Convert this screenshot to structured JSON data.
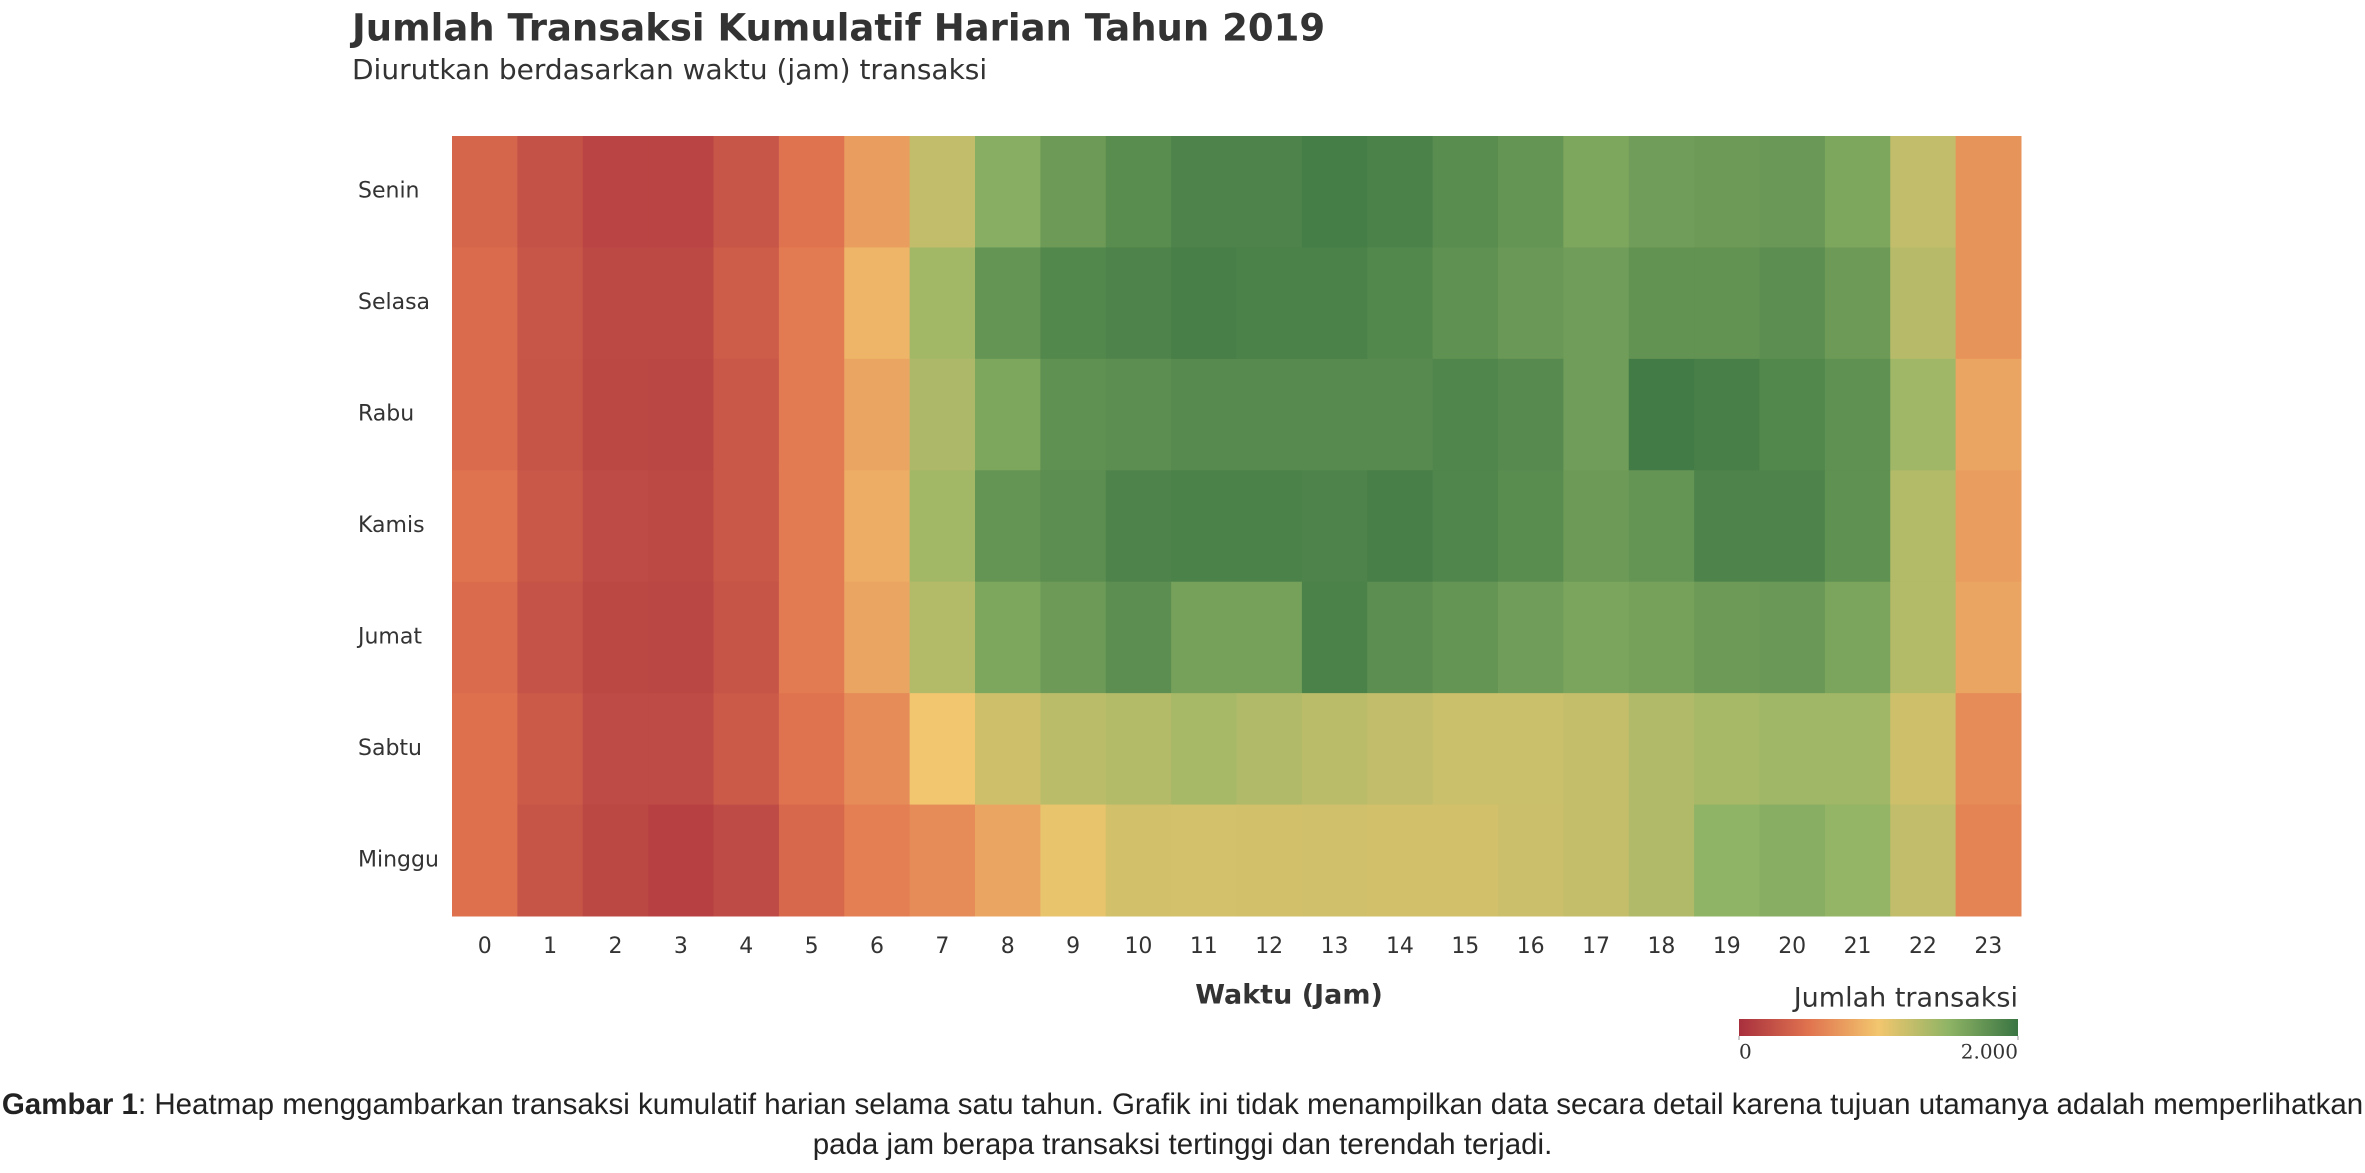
{
  "chart_data": {
    "type": "heatmap",
    "title": "Jumlah Transaksi Kumulatif Harian Tahun 2019",
    "subtitle": "Diurutkan berdasarkan waktu (jam) transaksi",
    "x_label": "Waktu (Jam)",
    "x": [
      0,
      1,
      2,
      3,
      4,
      5,
      6,
      7,
      8,
      9,
      10,
      11,
      12,
      13,
      14,
      15,
      16,
      17,
      18,
      19,
      20,
      21,
      22,
      23
    ],
    "categories": [
      "Senin",
      "Selasa",
      "Rabu",
      "Kamis",
      "Jumat",
      "Sabtu",
      "Minggu"
    ],
    "values": [
      [
        400,
        250,
        150,
        150,
        280,
        500,
        750,
        1250,
        1550,
        1700,
        1820,
        1880,
        1880,
        1930,
        1900,
        1820,
        1750,
        1600,
        1680,
        1700,
        1720,
        1600,
        1250,
        700
      ],
      [
        450,
        280,
        190,
        190,
        330,
        550,
        900,
        1400,
        1750,
        1850,
        1880,
        1920,
        1900,
        1900,
        1850,
        1780,
        1720,
        1680,
        1760,
        1760,
        1800,
        1700,
        1300,
        700
      ],
      [
        450,
        270,
        180,
        170,
        300,
        550,
        800,
        1350,
        1600,
        1780,
        1800,
        1830,
        1830,
        1830,
        1830,
        1870,
        1830,
        1680,
        1950,
        1920,
        1850,
        1780,
        1420,
        800
      ],
      [
        500,
        300,
        200,
        190,
        300,
        550,
        850,
        1400,
        1750,
        1800,
        1880,
        1900,
        1900,
        1880,
        1920,
        1870,
        1820,
        1700,
        1750,
        1880,
        1880,
        1780,
        1320,
        750
      ],
      [
        450,
        260,
        180,
        170,
        270,
        550,
        800,
        1320,
        1600,
        1700,
        1800,
        1650,
        1650,
        1900,
        1800,
        1750,
        1680,
        1620,
        1650,
        1700,
        1720,
        1620,
        1320,
        800
      ],
      [
        480,
        310,
        200,
        200,
        310,
        500,
        650,
        1000,
        1180,
        1280,
        1320,
        1380,
        1330,
        1280,
        1250,
        1200,
        1200,
        1230,
        1330,
        1380,
        1420,
        1420,
        1180,
        650
      ],
      [
        480,
        270,
        180,
        130,
        200,
        420,
        570,
        650,
        800,
        1050,
        1160,
        1150,
        1160,
        1170,
        1160,
        1160,
        1190,
        1230,
        1330,
        1500,
        1550,
        1480,
        1250,
        600
      ]
    ],
    "colorbar": {
      "title": "Jumlah transaksi",
      "lim": [
        0,
        2000
      ],
      "ticks": [
        0,
        {
          "value": 2000,
          "label": "2.000"
        }
      ],
      "colors": [
        "#a8303e",
        "#e0734f",
        "#f2c66e",
        "#8fb465",
        "#3a7543"
      ]
    }
  },
  "caption": {
    "label": "Gambar 1",
    "text": ": Heatmap menggambarkan transaksi kumulatif harian selama satu tahun. Grafik ini tidak menampilkan data secara detail karena tujuan utamanya adalah memperlihatkan pada jam berapa transaksi tertinggi dan terendah terjadi."
  }
}
